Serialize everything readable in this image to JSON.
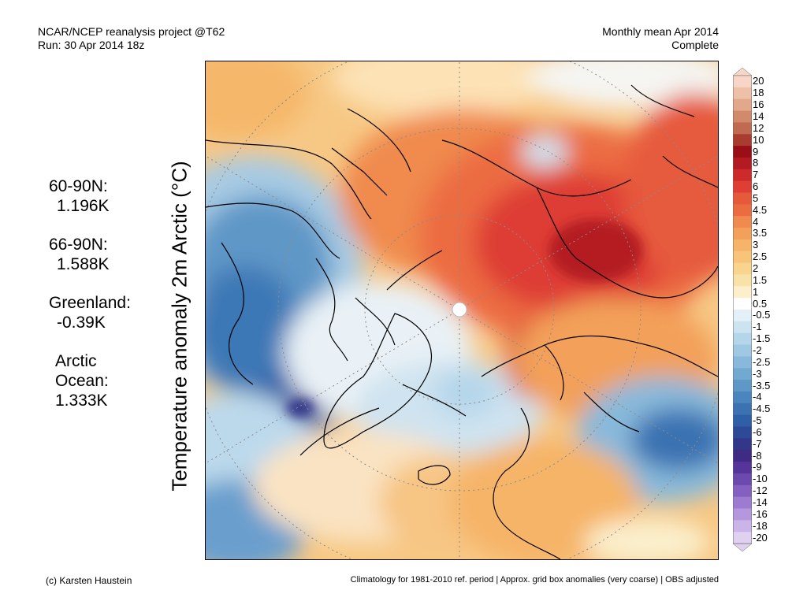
{
  "header": {
    "left_line1": "NCAR/NCEP reanalysis project @T62",
    "left_line2": "Run: 30 Apr 2014 18z",
    "right_line1": "Monthly mean Apr 2014",
    "right_line2": "Complete"
  },
  "stats": [
    {
      "label": "60-90N:",
      "value": "1.196K"
    },
    {
      "label": "66-90N:",
      "value": "1.588K"
    },
    {
      "label": "Greenland:",
      "value": "-0.39K"
    }
  ],
  "arctic": {
    "label1": "Arctic",
    "label2": "Ocean:",
    "value": "1.333K"
  },
  "ylabel": "Temperature anomaly 2m Arctic (°C)",
  "colorbar": {
    "labels": [
      "20",
      "18",
      "16",
      "14",
      "12",
      "10",
      "9",
      "8",
      "7",
      "6",
      "5",
      "4.5",
      "4",
      "3.5",
      "3",
      "2.5",
      "2",
      "1.5",
      "1",
      "0.5",
      "-0.5",
      "-1",
      "-1.5",
      "-2",
      "-2.5",
      "-3",
      "-3.5",
      "-4",
      "-4.5",
      "-5",
      "-6",
      "-7",
      "-8",
      "-9",
      "-10",
      "-12",
      "-14",
      "-16",
      "-18",
      "-20"
    ],
    "colors": [
      "#f8d6c7",
      "#eec0a8",
      "#e3a88c",
      "#d28a6c",
      "#c06a52",
      "#a83c2e",
      "#9a0e18",
      "#b41a22",
      "#cd2a2c",
      "#de3e34",
      "#e65a3c",
      "#ec6c42",
      "#f08a4e",
      "#f3a05a",
      "#f6b468",
      "#f7c47a",
      "#f8d48e",
      "#f9e2a8",
      "#fbefcc",
      "#ffffff",
      "#e4f0f7",
      "#cce3f0",
      "#b5d6ea",
      "#9fc8e2",
      "#88b9da",
      "#72a9d1",
      "#5d98c7",
      "#4a86bd",
      "#3a72b2",
      "#2f5fa6",
      "#2e4a97",
      "#33378a",
      "#3f2a84",
      "#55359a",
      "#6b49ad",
      "#8460c0",
      "#9c7bd0",
      "#b497dd",
      "#cbb4e8",
      "#e0d1f1"
    ]
  },
  "footer": {
    "left": "(c) Karsten Haustein",
    "right": "Climatology for 1981-2010 ref. period | Approx. grid box anomalies (very coarse) | OBS adjusted"
  }
}
